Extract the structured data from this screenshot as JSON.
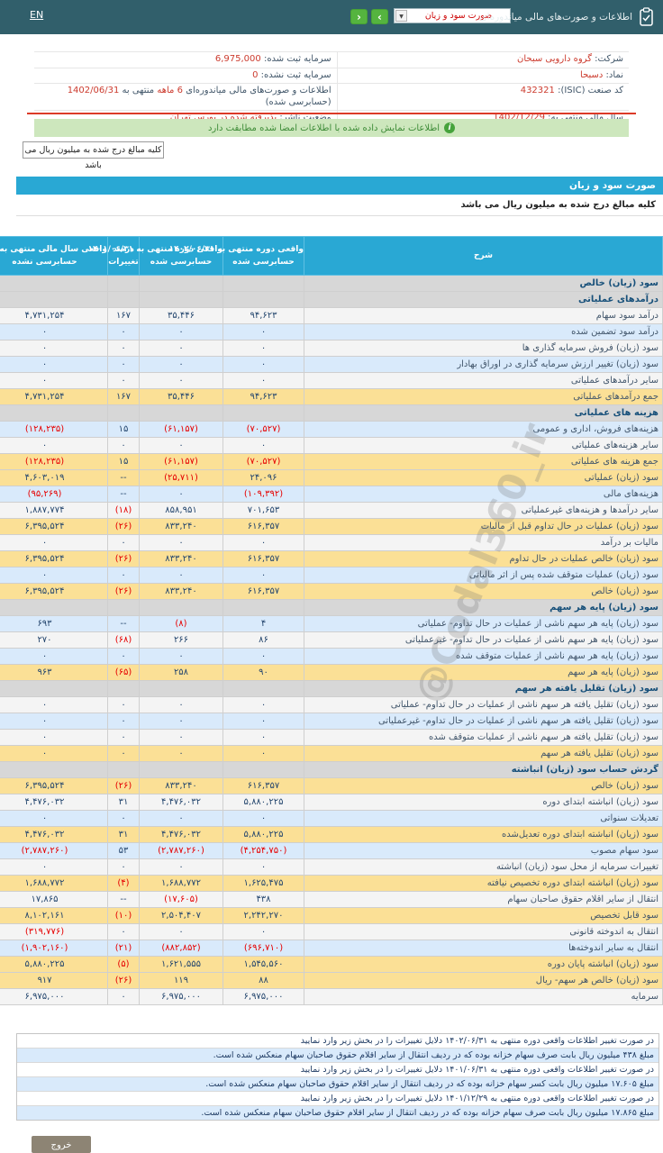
{
  "colors": {
    "topbar": "#315f6b",
    "accent_cyan": "#29a8d4",
    "nav_green": "#55b43f",
    "negative_red": "#e60000",
    "value_red": "#cc3b2e",
    "highlight_yellow": "#fbe096",
    "row_blue": "#d9eafb",
    "section_gray": "#d7d7d7",
    "info_green_bg": "#cde7bd",
    "info_green_text": "#3d8b37",
    "red_line": "#dc3a28",
    "exit_gray": "#8d8474"
  },
  "topbar": {
    "lang_label": "EN",
    "back_icon": "‹",
    "forward_icon": "›",
    "dropdown_value": "صورت سود و زیان",
    "dropdown_arrow": "▼",
    "title": "اطلاعات و صورت‌های مالی میاندوره‌ای"
  },
  "company": {
    "rows": [
      {
        "cells": [
          [
            {
              "t": "شرکت: ",
              "accent": false
            },
            {
              "t": "گروه دارویی سبحان",
              "accent": true
            }
          ],
          [
            {
              "t": "سرمایه ثبت شده: ",
              "accent": false
            },
            {
              "t": "6,975,000",
              "accent": true
            }
          ]
        ]
      },
      {
        "cells": [
          [
            {
              "t": "نماد: ",
              "accent": false
            },
            {
              "t": "دسبحا",
              "accent": true
            }
          ],
          [
            {
              "t": "سرمایه ثبت نشده: ",
              "accent": false
            },
            {
              "t": "0",
              "accent": true
            }
          ]
        ]
      },
      {
        "cells": [
          [
            {
              "t": "کد صنعت (ISIC): ",
              "accent": false
            },
            {
              "t": "432321",
              "accent": true
            }
          ],
          [
            {
              "t": "اطلاعات و صورت‌های مالی میاندوره‌ای ",
              "accent": false
            },
            {
              "t": "6 ماهه",
              "accent": true
            },
            {
              "t": " منتهی به ",
              "accent": false
            },
            {
              "t": "1402/06/31",
              "accent": true
            },
            {
              "t": " (حسابرسی شده)",
              "accent": false
            }
          ]
        ]
      },
      {
        "cells": [
          [
            {
              "t": "سال مالی منتهی به: ",
              "accent": false
            },
            {
              "t": "1402/12/29",
              "accent": true
            }
          ],
          [
            {
              "t": "وضعیت ناشر: ",
              "accent": false
            },
            {
              "t": "پذیرفته شده در بورس تهران",
              "accent": true
            }
          ]
        ]
      }
    ]
  },
  "info_bar": {
    "icon": "i",
    "text": "اطلاعات نمایش داده شده با اطلاعات امضا شده مطابقت دارد"
  },
  "unit_button_label": "کلیه مبالغ درج شده به میلیون ریال می باشد",
  "statement": {
    "title": "صورت سود و زیان",
    "unit_note": "کلیه مبالغ درج شده به میلیون ریال می باشد",
    "columns": {
      "desc": "شرح",
      "c1_line1": "واقعی دوره منتهی به ۱۴۰۲/۰۶/۳۱",
      "c1_line2": "حسابرسی شده",
      "c2_line1": "واقعی دوره منتهی به ۱۴۰۱/۰۶/۳۱",
      "c2_line2": "حسابرسی شده",
      "pct_line1": "درصد",
      "pct_line2": "تغییرات",
      "c4_line1": "واقعی سال مالی منتهی به ۱۴۰۱/۱۲/۲۹",
      "c4_line2": "حسابرسی نشده"
    },
    "rows": [
      {
        "type": "section",
        "label": "سود (زیان) خالص"
      },
      {
        "type": "section",
        "label": "درآمدهای عملیاتی"
      },
      {
        "type": "data",
        "style": "white",
        "label": "درآمد سود سهام",
        "v": [
          "۹۴,۶۲۳",
          "۳۵,۴۴۶",
          "۱۶۷",
          "۴,۷۳۱,۲۵۴"
        ]
      },
      {
        "type": "data",
        "style": "blue",
        "label": "درآمد سود تضمین شده",
        "v": [
          "۰",
          "۰",
          "۰",
          "۰"
        ]
      },
      {
        "type": "data",
        "style": "white",
        "label": "سود (زیان) فروش سرمایه گذاری ها",
        "v": [
          "۰",
          "۰",
          "۰",
          "۰"
        ]
      },
      {
        "type": "data",
        "style": "blue",
        "label": "سود (زیان) تغییر ارزش سرمایه گذاری در اوراق بهادار",
        "v": [
          "۰",
          "۰",
          "۰",
          "۰"
        ]
      },
      {
        "type": "data",
        "style": "white",
        "label": "سایر درآمدهای عملیاتی",
        "v": [
          "۰",
          "۰",
          "۰",
          "۰"
        ]
      },
      {
        "type": "data",
        "style": "yellow",
        "label": "جمع درآمدهای عملیاتی",
        "v": [
          "۹۴,۶۲۳",
          "۳۵,۴۴۶",
          "۱۶۷",
          "۴,۷۳۱,۲۵۴"
        ]
      },
      {
        "type": "section",
        "label": "هزینه های عملیاتی"
      },
      {
        "type": "data",
        "style": "blue",
        "label": "هزینه‌های فروش، اداری و عمومی",
        "v": [
          "(۷۰,۵۲۷)",
          "(۶۱,۱۵۷)",
          "۱۵",
          "(۱۲۸,۲۳۵)"
        ]
      },
      {
        "type": "data",
        "style": "white",
        "label": "سایر هزینه‌های عملیاتی",
        "v": [
          "۰",
          "۰",
          "۰",
          "۰"
        ]
      },
      {
        "type": "data",
        "style": "yellow",
        "label": "جمع هزینه های عملیاتی",
        "v": [
          "(۷۰,۵۲۷)",
          "(۶۱,۱۵۷)",
          "۱۵",
          "(۱۲۸,۲۳۵)"
        ]
      },
      {
        "type": "data",
        "style": "yellow",
        "label": "سود (زیان) عملیاتی",
        "v": [
          "۲۴,۰۹۶",
          "(۲۵,۷۱۱)",
          "--",
          "۴,۶۰۳,۰۱۹"
        ]
      },
      {
        "type": "data",
        "style": "blue",
        "label": "هزینه‌های مالی",
        "v": [
          "(۱۰۹,۳۹۲)",
          "۰",
          "--",
          "(۹۵,۲۶۹)"
        ]
      },
      {
        "type": "data",
        "style": "white",
        "label": "سایر درآمدها و هزینه‌های غیرعملیاتی",
        "v": [
          "۷۰۱,۶۵۳",
          "۸۵۸,۹۵۱",
          "(۱۸)",
          "۱,۸۸۷,۷۷۴"
        ]
      },
      {
        "type": "data",
        "style": "yellow",
        "label": "سود (زیان) عملیات در حال تداوم قبل از مالیات",
        "v": [
          "۶۱۶,۳۵۷",
          "۸۳۳,۲۴۰",
          "(۲۶)",
          "۶,۳۹۵,۵۲۴"
        ]
      },
      {
        "type": "data",
        "style": "white",
        "label": "مالیات بر درآمد",
        "v": [
          "۰",
          "۰",
          "۰",
          "۰"
        ]
      },
      {
        "type": "data",
        "style": "yellow",
        "label": "سود (زیان) خالص عملیات در حال تداوم",
        "v": [
          "۶۱۶,۳۵۷",
          "۸۳۳,۲۴۰",
          "(۲۶)",
          "۶,۳۹۵,۵۲۴"
        ]
      },
      {
        "type": "data",
        "style": "blue",
        "label": "سود (زیان) عملیات متوقف شده پس از اثر مالیاتی",
        "v": [
          "۰",
          "۰",
          "۰",
          "۰"
        ]
      },
      {
        "type": "data",
        "style": "yellow",
        "label": "سود (زیان) خالص",
        "v": [
          "۶۱۶,۳۵۷",
          "۸۳۳,۲۴۰",
          "(۲۶)",
          "۶,۳۹۵,۵۲۴"
        ]
      },
      {
        "type": "section",
        "label": "سود (زیان) پایه هر سهم"
      },
      {
        "type": "data",
        "style": "blue",
        "label": "سود (زیان) پایه هر سهم ناشی از عملیات در حال تداوم- عملیاتی",
        "v": [
          "۴",
          "(۸)",
          "--",
          "۶۹۳"
        ]
      },
      {
        "type": "data",
        "style": "white",
        "label": "سود (زیان) پایه هر سهم ناشی از عملیات در حال تداوم- غیرعملیاتی",
        "v": [
          "۸۶",
          "۲۶۶",
          "(۶۸)",
          "۲۷۰"
        ]
      },
      {
        "type": "data",
        "style": "blue",
        "label": "سود (زیان) پایه هر سهم ناشی از عملیات متوقف شده",
        "v": [
          "۰",
          "۰",
          "۰",
          "۰"
        ]
      },
      {
        "type": "data",
        "style": "yellow",
        "label": "سود (زیان) پایه هر سهم",
        "v": [
          "۹۰",
          "۲۵۸",
          "(۶۵)",
          "۹۶۳"
        ]
      },
      {
        "type": "section",
        "label": "سود (زیان) تقلیل یافته هر سهم"
      },
      {
        "type": "data",
        "style": "white",
        "label": "سود (زیان) تقلیل یافته هر سهم ناشی از عملیات در حال تداوم- عملیاتی",
        "v": [
          "۰",
          "۰",
          "۰",
          "۰"
        ]
      },
      {
        "type": "data",
        "style": "blue",
        "label": "سود (زیان) تقلیل یافته هر سهم ناشی از عملیات در حال تداوم- غیرعملیاتی",
        "v": [
          "۰",
          "۰",
          "۰",
          "۰"
        ]
      },
      {
        "type": "data",
        "style": "white",
        "label": "سود (زیان) تقلیل یافته هر سهم ناشی از عملیات متوقف شده",
        "v": [
          "۰",
          "۰",
          "۰",
          "۰"
        ]
      },
      {
        "type": "data",
        "style": "yellow",
        "label": "سود (زیان) تقلیل یافته هر سهم",
        "v": [
          "۰",
          "۰",
          "۰",
          "۰"
        ]
      },
      {
        "type": "section",
        "label": "گردش حساب سود (زیان) انباشته"
      },
      {
        "type": "data",
        "style": "yellow",
        "label": "سود (زیان) خالص",
        "v": [
          "۶۱۶,۳۵۷",
          "۸۳۳,۲۴۰",
          "(۲۶)",
          "۶,۳۹۵,۵۲۴"
        ]
      },
      {
        "type": "data",
        "style": "white",
        "label": "سود (زیان) انباشته ابتدای دوره",
        "v": [
          "۵,۸۸۰,۲۲۵",
          "۴,۴۷۶,۰۳۲",
          "۳۱",
          "۴,۴۷۶,۰۳۲"
        ]
      },
      {
        "type": "data",
        "style": "blue",
        "label": "تعدیلات سنواتی",
        "v": [
          "۰",
          "۰",
          "۰",
          "۰"
        ]
      },
      {
        "type": "data",
        "style": "yellow",
        "label": "سود (زیان) انباشته ابتدای دوره تعدیل‌شده",
        "v": [
          "۵,۸۸۰,۲۲۵",
          "۴,۴۷۶,۰۳۲",
          "۳۱",
          "۴,۴۷۶,۰۳۲"
        ]
      },
      {
        "type": "data",
        "style": "blue",
        "label": "سود سهام مصوب",
        "v": [
          "(۴,۲۵۴,۷۵۰)",
          "(۲,۷۸۷,۲۶۰)",
          "۵۳",
          "(۲,۷۸۷,۲۶۰)"
        ]
      },
      {
        "type": "data",
        "style": "white",
        "label": "تغییرات سرمایه از محل سود (زیان) انباشته",
        "v": [
          "۰",
          "۰",
          "۰",
          "۰"
        ]
      },
      {
        "type": "data",
        "style": "yellow",
        "label": "سود (زیان) انباشته ابتدای دوره تخصیص نیافته",
        "v": [
          "۱,۶۲۵,۴۷۵",
          "۱,۶۸۸,۷۷۲",
          "(۴)",
          "۱,۶۸۸,۷۷۲"
        ]
      },
      {
        "type": "data",
        "style": "white",
        "label": "انتقال از سایر اقلام حقوق صاحبان سهام",
        "v": [
          "۴۳۸",
          "(۱۷,۶۰۵)",
          "--",
          "۱۷,۸۶۵"
        ]
      },
      {
        "type": "data",
        "style": "yellow",
        "label": "سود قابل تخصیص",
        "v": [
          "۲,۲۴۲,۲۷۰",
          "۲,۵۰۴,۴۰۷",
          "(۱۰)",
          "۸,۱۰۲,۱۶۱"
        ]
      },
      {
        "type": "data",
        "style": "white",
        "label": "انتقال به اندوخته قانونی",
        "v": [
          "۰",
          "۰",
          "۰",
          "(۳۱۹,۷۷۶)"
        ]
      },
      {
        "type": "data",
        "style": "blue",
        "label": "انتقال به سایر اندوخته‌ها",
        "v": [
          "(۶۹۶,۷۱۰)",
          "(۸۸۲,۸۵۲)",
          "(۲۱)",
          "(۱,۹۰۲,۱۶۰)"
        ]
      },
      {
        "type": "data",
        "style": "yellow",
        "label": "سود (زیان) انباشته پایان دوره",
        "v": [
          "۱,۵۴۵,۵۶۰",
          "۱,۶۲۱,۵۵۵",
          "(۵)",
          "۵,۸۸۰,۲۲۵"
        ]
      },
      {
        "type": "data",
        "style": "yellow",
        "label": "سود (زیان) خالص هر سهم- ریال",
        "v": [
          "۸۸",
          "۱۱۹",
          "(۲۶)",
          "۹۱۷"
        ]
      },
      {
        "type": "data",
        "style": "white",
        "label": "سرمایه",
        "v": [
          "۶,۹۷۵,۰۰۰",
          "۶,۹۷۵,۰۰۰",
          "۰",
          "۶,۹۷۵,۰۰۰"
        ]
      }
    ]
  },
  "watermark": "@Codal360_ir",
  "footnotes": [
    {
      "style": "white",
      "text": "در صورت تغییر اطلاعات واقعی دوره منتهی به ۱۴۰۲/۰۶/۳۱ دلایل تغییرات را در بخش زیر وارد نمایید"
    },
    {
      "style": "blue",
      "text": "مبلغ ۴۳۸ میلیون ریال بابت صرف سهام خزانه بوده که در ردیف انتقال از سایر اقلام حقوق صاحبان سهام منعکس شده است."
    },
    {
      "style": "white",
      "text": "در صورت تغییر اطلاعات واقعی دوره منتهی به ۱۴۰۱/۰۶/۳۱ دلایل تغییرات را در بخش زیر وارد نمایید"
    },
    {
      "style": "blue",
      "text": "مبلغ ۱۷.۶۰۵ میلیون ریال بابت کسر سهام خزانه بوده که در ردیف انتقال از سایر اقلام حقوق صاحبان سهام منعکس شده است."
    },
    {
      "style": "white",
      "text": "در صورت تغییر اطلاعات واقعی دوره منتهی به ۱۴۰۱/۱۲/۲۹ دلایل تغییرات را در بخش زیر وارد نمایید"
    },
    {
      "style": "blue",
      "text": "مبلغ ۱۷.۸۶۵ میلیون ریال بابت صرف سهام خزانه بوده که در ردیف انتقال از سایر اقلام حقوق صاحبان سهام منعکس شده است."
    }
  ],
  "exit_button_label": "خروج"
}
